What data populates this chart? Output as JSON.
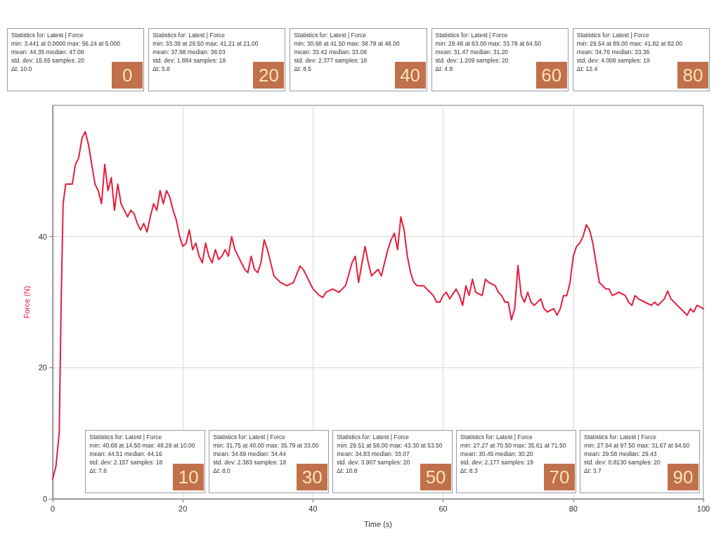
{
  "chart_data": {
    "type": "line",
    "xlabel": "Time (s)",
    "ylabel": "Force (N)",
    "xlim": [
      0,
      100
    ],
    "xticks": [
      0,
      20,
      40,
      60,
      80,
      100
    ],
    "ylim": [
      0,
      60
    ],
    "yticks": [
      0,
      20,
      40
    ],
    "grid": true,
    "marker": "none",
    "line_style": "solid",
    "annotations": [
      "Statistics for: Latest | Force\nmin: 3.441 at 0.0000 max: 56.24 at 5.000\nmean: 44.35 median: 47.08\nstd. dev: 15.65 samples: 20\nΔt: 10.0",
      "0",
      "Statistics for: Latest | Force\nmin: 33.39 at 29.50 max: 41.21 at 21.00\nmean: 37.98 median: 38.03\nstd. dev: 1.884 samples: 19\nΔt: 5.8",
      "20",
      "Statistics for: Latest | Force\nmin: 30.68 at 41.50 max: 38.79 at 48.00\nmean: 33.42 median: 33.08\nstd. dev: 2.377 samples: 18\nΔt: 8.5",
      "40",
      "Statistics for: Latest | Force\nmin: 29.48 at 63.00 max: 33.78 at 64.50\nmean: 31.47 median: 31.20\nstd. dev: 1.209 samples: 20\nΔt: 4.8",
      "60",
      "Statistics for: Latest | Force\nmin: 29.54 at 89.00 max: 41.82 at 82.00\nmean: 34.76 median: 33.36\nstd. dev: 4.008 samples: 19\nΔt: 12.4",
      "80",
      "Statistics for: Latest | Force\nmin: 40.68 at 14.50 max: 48.29 at 10.00\nmean: 44.51 median: 44.16\nstd. dev: 2.157 samples: 18\nΔt: 7.6",
      "10",
      "Statistics for: Latest | Force\nmin: 31.75 at 40.00 max: 35.79 at 33.00\nmean: 34.69 median: 34.44\nstd. dev: 2.383 samples: 18\nΔt: 8.0",
      "30",
      "Statistics for: Latest | Force\nmin: 29.51 at 58.00 max: 43.30 at 53.50\nmean: 34.83 median: 33.07\nstd. dev: 3.907 samples: 20\nΔt: 10.8",
      "50",
      "Statistics for: Latest | Force\nmin: 27.27 at 70.50 max: 35.61 at 71.50\nmean: 30.45 median: 30.20\nstd. dev: 2.177 samples: 19\nΔt: 8.3",
      "70",
      "Statistics for: Latest | Force\nmin: 27.94 at 97.50 max: 31.67 at 94.50\nmean: 29.58 median: 29.43\nstd. dev: 0.8130 samples: 20\nΔt: 3.7",
      "90"
    ],
    "series": [
      {
        "color": "#e41e3c",
        "x": [
          0,
          0.5,
          1,
          1.3,
          1.6,
          2,
          3,
          3.5,
          4,
          4.5,
          5,
          5.5,
          6,
          6.5,
          7,
          7.5,
          8,
          8.5,
          9,
          9.5,
          10,
          10.5,
          11,
          11.5,
          12,
          12.5,
          13,
          13.5,
          14,
          14.5,
          15,
          15.5,
          16,
          16.5,
          17,
          17.5,
          18,
          18.5,
          19,
          19.5,
          20,
          20.5,
          21,
          21.5,
          22,
          22.5,
          23,
          23.5,
          24,
          24.5,
          25,
          25.5,
          26,
          26.5,
          27,
          27.5,
          28,
          28.5,
          29,
          29.5,
          30,
          30.5,
          31,
          31.5,
          32,
          32.5,
          33,
          33.5,
          34,
          34.5,
          35,
          36,
          37,
          38,
          38.5,
          39,
          39.5,
          40,
          41,
          41.5,
          42,
          43,
          44,
          45,
          46,
          46.5,
          47,
          48,
          48.5,
          49,
          49.5,
          50,
          50.5,
          51,
          51.5,
          52,
          52.5,
          53,
          53.5,
          54,
          54.5,
          55,
          55.5,
          56,
          57,
          58,
          58.5,
          59,
          59.5,
          60,
          60.5,
          61,
          62,
          62.5,
          63,
          63.5,
          64,
          64.5,
          65,
          66,
          66.5,
          67,
          68,
          68.5,
          69,
          69.5,
          70,
          70.5,
          71,
          71.5,
          72,
          72.5,
          73,
          73.5,
          74,
          75,
          75.5,
          76,
          77,
          77.5,
          78,
          78.5,
          79,
          79.5,
          80,
          80.5,
          81,
          81.5,
          82,
          82.5,
          83,
          83.5,
          84,
          85,
          85.5,
          86,
          87,
          88,
          88.5,
          89,
          89.5,
          90,
          91,
          92,
          92.5,
          93,
          94,
          94.5,
          95,
          96,
          97,
          97.5,
          98,
          98.5,
          99,
          100
        ],
        "values": [
          3,
          5,
          10,
          30,
          45,
          48,
          48,
          51,
          52,
          55,
          56,
          54,
          51,
          48,
          47,
          45,
          51,
          47,
          49,
          44,
          48,
          45,
          44,
          43,
          44,
          43.5,
          42,
          41,
          42,
          40.7,
          43,
          45,
          44,
          47,
          45,
          47,
          46,
          44,
          42.5,
          40,
          38.5,
          39,
          41,
          38,
          39,
          37,
          36,
          39,
          37,
          36,
          38,
          36.5,
          37,
          38,
          37,
          40,
          38,
          37,
          36,
          35,
          34.5,
          37,
          35,
          34.5,
          36,
          39.5,
          38,
          36,
          34,
          33.5,
          33,
          32.5,
          33,
          35.5,
          35,
          34,
          33,
          32,
          31,
          30.7,
          31.5,
          32,
          31.5,
          32.5,
          36,
          37,
          33,
          38.5,
          36,
          34,
          34.5,
          35,
          34,
          36,
          38,
          39.5,
          40.5,
          38,
          43,
          41,
          37,
          34.5,
          33,
          32.5,
          32.5,
          31.5,
          31,
          30,
          30,
          31,
          31.5,
          30.5,
          32,
          31,
          29.5,
          32.5,
          31,
          33.5,
          31.5,
          31,
          33.5,
          33,
          32.5,
          31.5,
          31,
          30,
          30,
          27.3,
          29,
          35.6,
          31,
          30,
          31.5,
          30,
          29.5,
          30.5,
          29,
          28.5,
          29,
          28,
          29,
          31,
          31,
          33,
          37,
          38.5,
          39,
          40,
          41.8,
          41,
          39,
          36,
          33,
          32,
          32,
          31,
          31.5,
          31,
          30,
          29.5,
          31,
          30.5,
          30,
          29.5,
          30,
          29.5,
          30.5,
          31.7,
          30.5,
          29.5,
          28.5,
          28,
          29,
          28.5,
          29.5,
          29
        ]
      }
    ]
  }
}
